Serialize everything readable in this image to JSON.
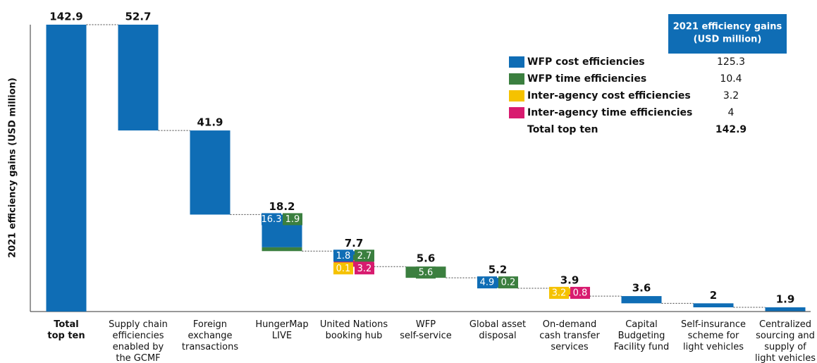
{
  "chart_data": {
    "type": "waterfall",
    "ylabel": "2021 efficiency gains (USD million)",
    "ylim": [
      0,
      142.9
    ],
    "total": 142.9,
    "total_category": "Total\ntop ten",
    "categories": [
      "Supply chain\nefficiencies\nenabled by\nthe GCMF",
      "Foreign\nexchange\ntransactions",
      "HungerMap\nLIVE",
      "United Nations\nbooking hub",
      "WFP\nself-service",
      "Global asset\ndisposal",
      "On-demand\ncash transfer\nservices",
      "Capital\nBudgeting\nFacility fund",
      "Self-insurance\nscheme for\nlight vehicles",
      "Centralized\nsourcing and\nsupply of\nlight vehicles"
    ],
    "values": [
      52.7,
      41.9,
      18.2,
      7.7,
      5.6,
      5.2,
      3.9,
      3.6,
      2.0,
      1.9
    ],
    "series": [
      {
        "name": "WFP cost efficiencies",
        "color": "#0f6db5",
        "total": 125.3,
        "values": [
          52.7,
          41.9,
          16.3,
          1.8,
          null,
          4.9,
          null,
          3.6,
          2.0,
          1.9
        ]
      },
      {
        "name": "WFP time efficiencies",
        "color": "#3b7f3f",
        "total": 10.4,
        "values": [
          null,
          null,
          1.9,
          2.7,
          5.6,
          0.2,
          null,
          null,
          null,
          null
        ]
      },
      {
        "name": "Inter-agency cost efficiencies",
        "color": "#f5c200",
        "total": 3.2,
        "values": [
          null,
          null,
          null,
          0.1,
          null,
          null,
          3.2,
          null,
          null,
          null
        ]
      },
      {
        "name": "Inter-agency time efficiencies",
        "color": "#d81b6f",
        "total": 4.0,
        "values": [
          null,
          null,
          null,
          3.2,
          null,
          null,
          0.8,
          null,
          null,
          null
        ]
      }
    ],
    "legend_title": "2021 efficiency gains",
    "legend_subtitle": "(USD million)",
    "legend_total_label": "Total  top ten",
    "legend_total": 142.9
  }
}
